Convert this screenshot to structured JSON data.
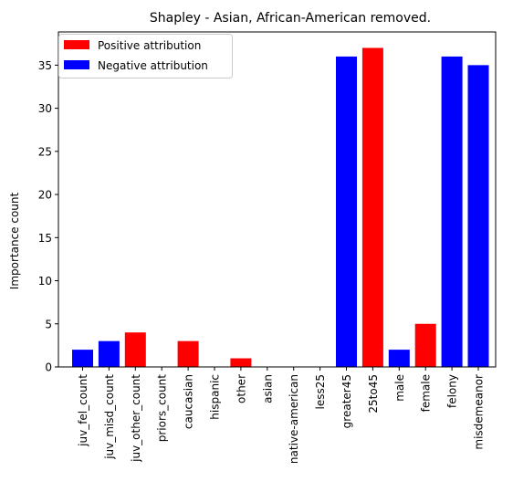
{
  "chart_data": {
    "type": "bar",
    "title": "Shapley - Asian, African-American removed.",
    "xlabel": "",
    "ylabel": "Importance count",
    "ylim": [
      0,
      38.85
    ],
    "yticks": [
      0,
      5,
      10,
      15,
      20,
      25,
      30,
      35
    ],
    "grid": false,
    "legend_position": "top-left",
    "categories": [
      "juv_fel_count",
      "juv_misd_count",
      "juv_other_count",
      "priors_count",
      "caucasian",
      "hispanic",
      "other",
      "asian",
      "native-american",
      "less25",
      "greater45",
      "25to45",
      "male",
      "female",
      "felony",
      "misdemeanor"
    ],
    "values": [
      2,
      3,
      4,
      0,
      3,
      0,
      1,
      0,
      0,
      0,
      36,
      37,
      2,
      5,
      36,
      35
    ],
    "sign": [
      "negative",
      "negative",
      "positive",
      "negative",
      "positive",
      "negative",
      "positive",
      "negative",
      "negative",
      "negative",
      "negative",
      "positive",
      "negative",
      "positive",
      "negative",
      "negative"
    ],
    "legend": [
      {
        "label": "Positive attribution",
        "key": "positive"
      },
      {
        "label": "Negative attribution",
        "key": "negative"
      }
    ],
    "colors": {
      "positive": "#ff0000",
      "negative": "#0000ff"
    }
  }
}
